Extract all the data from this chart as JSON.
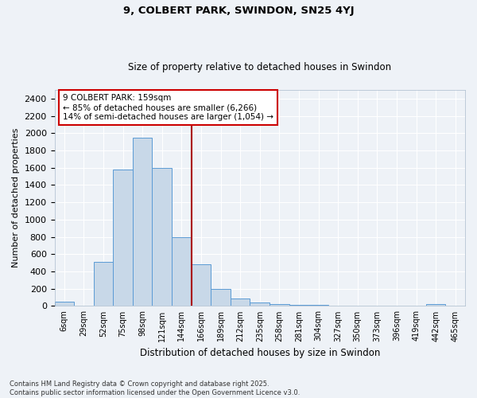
{
  "title": "9, COLBERT PARK, SWINDON, SN25 4YJ",
  "subtitle": "Size of property relative to detached houses in Swindon",
  "xlabel": "Distribution of detached houses by size in Swindon",
  "ylabel": "Number of detached properties",
  "bar_labels": [
    "6sqm",
    "29sqm",
    "52sqm",
    "75sqm",
    "98sqm",
    "121sqm",
    "144sqm",
    "166sqm",
    "189sqm",
    "212sqm",
    "235sqm",
    "258sqm",
    "281sqm",
    "304sqm",
    "327sqm",
    "350sqm",
    "373sqm",
    "396sqm",
    "419sqm",
    "442sqm",
    "465sqm"
  ],
  "bar_values": [
    50,
    0,
    510,
    1580,
    1950,
    1600,
    800,
    480,
    200,
    85,
    40,
    25,
    15,
    10,
    5,
    5,
    0,
    0,
    0,
    20,
    0
  ],
  "bar_color": "#c8d8e8",
  "bar_edge_color": "#5b9bd5",
  "vline_x_index": 6.5,
  "vline_color": "#aa0000",
  "annotation_text": "9 COLBERT PARK: 159sqm\n← 85% of detached houses are smaller (6,266)\n14% of semi-detached houses are larger (1,054) →",
  "annotation_box_color": "#ffffff",
  "annotation_box_edge": "#cc0000",
  "ylim": [
    0,
    2500
  ],
  "yticks": [
    0,
    200,
    400,
    600,
    800,
    1000,
    1200,
    1400,
    1600,
    1800,
    2000,
    2200,
    2400
  ],
  "footer": "Contains HM Land Registry data © Crown copyright and database right 2025.\nContains public sector information licensed under the Open Government Licence v3.0.",
  "background_color": "#eef2f7",
  "grid_color": "#ffffff",
  "title_fontsize": 9,
  "subtitle_fontsize": 8.5
}
